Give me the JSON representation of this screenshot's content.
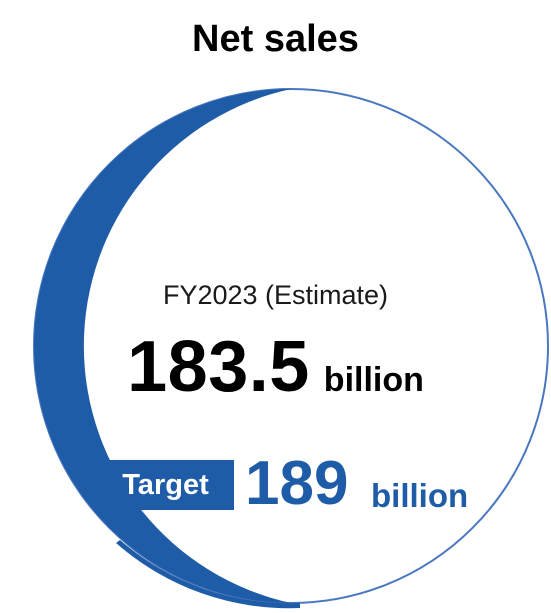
{
  "title": "Net sales",
  "period_label": "FY2023 (Estimate)",
  "estimate": {
    "value": "183.5",
    "unit": "billion"
  },
  "target": {
    "badge_label": "Target",
    "value": "189",
    "unit": "billion"
  },
  "colors": {
    "accent": "#1f5ca8",
    "ring_outer": "#1f5ca8",
    "ring_inner": "#4a78c0",
    "text": "#000000"
  }
}
